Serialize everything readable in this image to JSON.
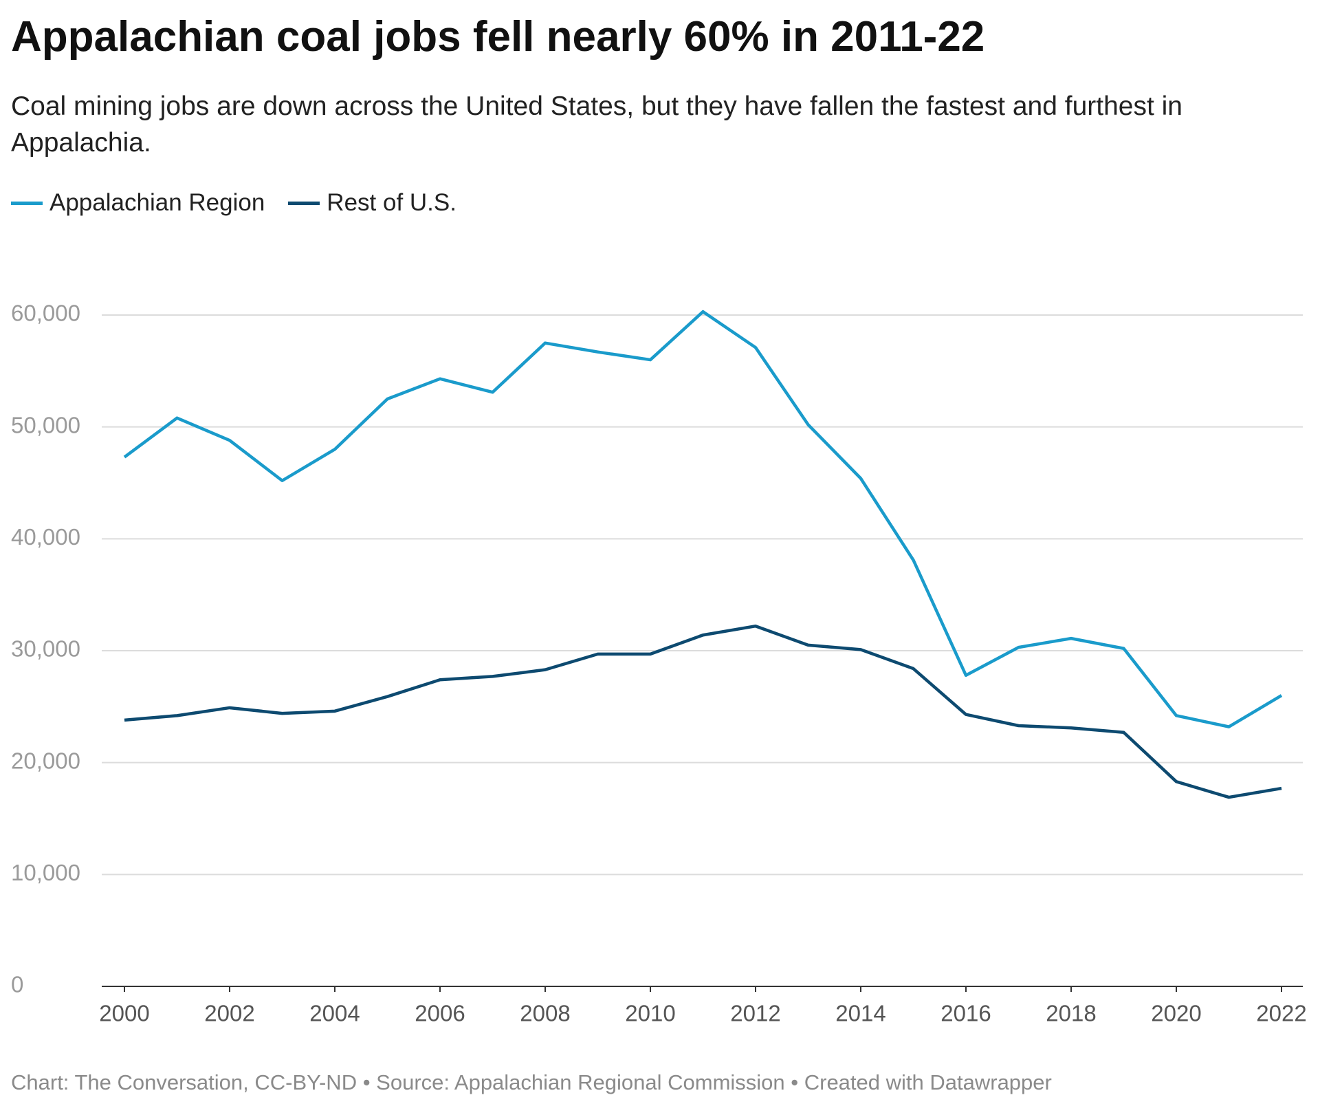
{
  "chart_data": {
    "type": "line",
    "title": "Appalachian coal jobs fell nearly 60% in 2011-22",
    "subtitle": "Coal mining jobs are down across the United States, but they have fallen the fastest and furthest in Appalachia.",
    "footer": "Chart: The Conversation, CC-BY-ND • Source: Appalachian Regional Commission • Created with Datawrapper",
    "x": [
      2000,
      2001,
      2002,
      2003,
      2004,
      2005,
      2006,
      2007,
      2008,
      2009,
      2010,
      2011,
      2012,
      2013,
      2014,
      2015,
      2016,
      2017,
      2018,
      2019,
      2020,
      2021,
      2022
    ],
    "series": [
      {
        "name": "Appalachian Region",
        "color": "#1a9bcb",
        "values": [
          47300,
          50800,
          48800,
          45200,
          48000,
          52500,
          54300,
          53100,
          57500,
          56700,
          56000,
          60300,
          57100,
          50200,
          45400,
          38100,
          27800,
          30300,
          31100,
          30200,
          24200,
          23200,
          26000
        ]
      },
      {
        "name": "Rest of U.S.",
        "color": "#0d4a70",
        "values": [
          23800,
          24200,
          24900,
          24400,
          24600,
          25900,
          27400,
          27700,
          28300,
          29700,
          29700,
          31400,
          32200,
          30500,
          30100,
          28400,
          24300,
          23300,
          23100,
          22700,
          18300,
          16900,
          17700
        ]
      }
    ],
    "xlim": [
      2000,
      2022
    ],
    "xticks": [
      2000,
      2002,
      2004,
      2006,
      2008,
      2010,
      2012,
      2014,
      2016,
      2018,
      2020,
      2022
    ],
    "ylim": [
      0,
      60000
    ],
    "yticks": [
      0,
      {
        "value": 10000,
        "label": "10,000"
      },
      {
        "value": 20000,
        "label": "20,000"
      },
      {
        "value": 30000,
        "label": "30,000"
      },
      {
        "value": 40000,
        "label": "40,000"
      },
      {
        "value": 50000,
        "label": "50,000"
      },
      {
        "value": 60000,
        "label": "60,000"
      }
    ],
    "grid": true
  }
}
